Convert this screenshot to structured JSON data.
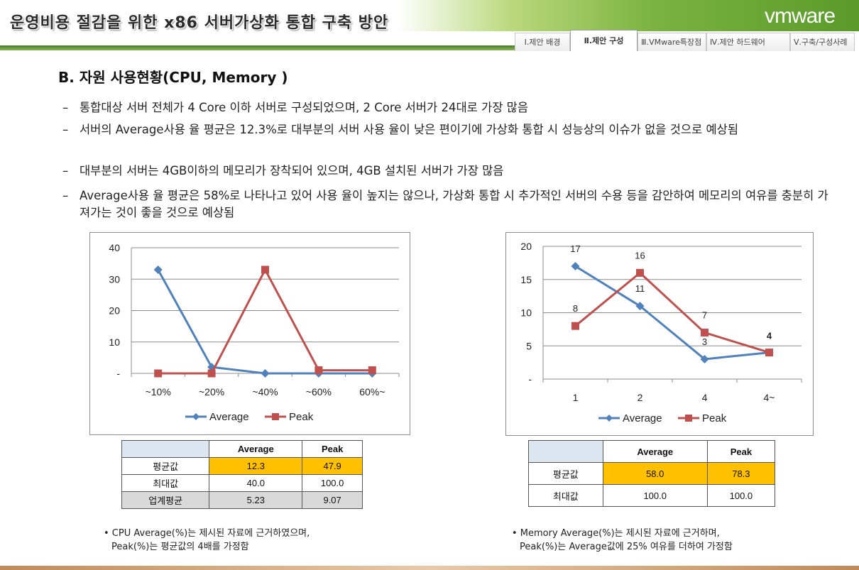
{
  "header": {
    "title": "운영비용 절감을 위한 x86 서버가상화 통합 구축 방안",
    "logo_text": "vmware",
    "tabs": [
      {
        "label": "Ⅰ.제안 배경",
        "active": false
      },
      {
        "label": "Ⅱ.제안 구성",
        "active": true
      },
      {
        "label": "Ⅲ.VMware특장점",
        "active": false
      },
      {
        "label": "Ⅳ.제안 하드웨어",
        "active": false
      },
      {
        "label": "Ⅴ.구축/구성사례",
        "active": false
      }
    ]
  },
  "section_title": "B. 자원 사용현황(CPU, Memory )",
  "bullets": [
    {
      "dash": "–",
      "text": "통합대상 서버 전체가 4 Core 이하 서버로 구성되었으며, 2 Core 서버가 24대로 가장 많음"
    },
    {
      "dash": "–",
      "text": "서버의 Average사용 율 평균은 12.3%로 대부분의 서버 사용 율이 낮은 편이기에 가상화 통합 시 성능상의 이슈가 없을 것으로 예상됨"
    },
    {
      "dash": "–",
      "text": "대부분의 서버는 4GB이하의 메모리가 장착되어 있으며, 4GB 설치된 서버가 가장 많음"
    },
    {
      "dash": "–",
      "text": "Average사용 율 평균은 58%로 나타나고 있어 사용 율이 높지는 않으나, 가상화 통합 시 추가적인 서버의 수용 등을 감안하여 메모리의 여유를 충분히 가져가는 것이 좋을 것으로 예상됨"
    }
  ],
  "colors": {
    "average": "#4f81bd",
    "peak": "#c0504d",
    "highlight": "#ffc000",
    "grid": "#8c8c8c"
  },
  "chart_data": [
    {
      "type": "line",
      "categories": [
        "~10%",
        "~20%",
        "~40%",
        "~60%",
        "60%~"
      ],
      "series": [
        {
          "name": "Average",
          "values": [
            33,
            2,
            0,
            0,
            0
          ]
        },
        {
          "name": "Peak",
          "values": [
            0,
            0,
            33,
            1,
            1
          ]
        }
      ],
      "ylim": [
        0,
        40
      ],
      "yticks": [
        "-",
        "10",
        "20",
        "30",
        "40"
      ],
      "grid": true,
      "legend": "bottom",
      "data_labels": false
    },
    {
      "type": "line",
      "categories": [
        "1",
        "2",
        "4",
        "4~"
      ],
      "series": [
        {
          "name": "Average",
          "values": [
            17,
            11,
            3,
            4
          ]
        },
        {
          "name": "Peak",
          "values": [
            8,
            16,
            7,
            4
          ]
        }
      ],
      "ylim": [
        0,
        20
      ],
      "yticks": [
        "-",
        "5",
        "10",
        "15",
        "20"
      ],
      "grid": true,
      "legend": "bottom",
      "data_labels": true
    }
  ],
  "table1": {
    "headers": [
      "",
      "Average",
      "Peak"
    ],
    "rows": [
      {
        "label": "평균값",
        "average": "12.3",
        "peak": "47.9"
      },
      {
        "label": "최대값",
        "average": "40.0",
        "peak": "100.0"
      },
      {
        "label": "업계평균",
        "average": "5.23",
        "peak": "9.07"
      }
    ]
  },
  "table2": {
    "headers": [
      "",
      "Average",
      "Peak"
    ],
    "rows": [
      {
        "label": "평균값",
        "average": "58.0",
        "peak": "78.3"
      },
      {
        "label": "최대값",
        "average": "100.0",
        "peak": "100.0"
      }
    ]
  },
  "note1": {
    "line1": "• CPU Average(%)는 제시된 자료에 근거하였으며,",
    "line2": "Peak(%)는 평균값의 4배를 가정함"
  },
  "note2": {
    "line1": "• Memory Average(%)는 제시된 자료에 근거하며,",
    "line2": "Peak(%)는 Average값에 25% 여유를 더하여 가정함"
  }
}
